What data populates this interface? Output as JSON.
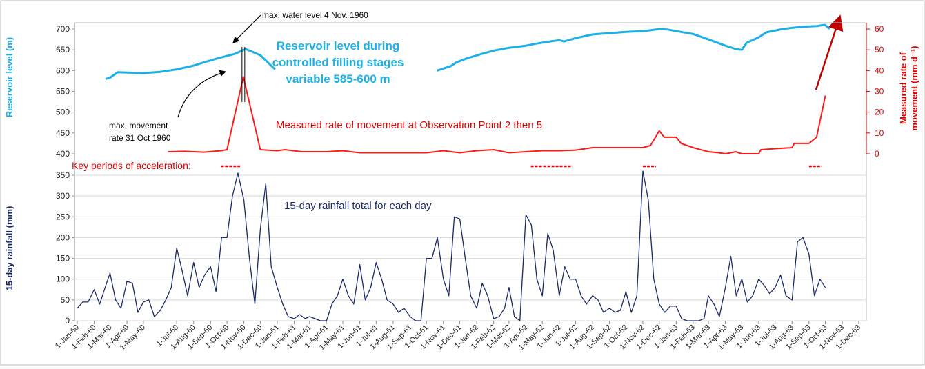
{
  "chart_data": [
    {
      "type": "line",
      "ylabel": "Reservoir level (m)",
      "y2label": [
        "Measured rate of",
        "movement (mm d⁻¹)"
      ],
      "ylim": [
        400,
        715
      ],
      "yticks": [
        400,
        450,
        500,
        550,
        600,
        650,
        700
      ],
      "y2lim": [
        0,
        63
      ],
      "y2ticks": [
        0,
        10,
        20,
        30,
        40,
        50,
        60
      ],
      "annotations": {
        "water_peak": "max. water level 4 Nov. 1960",
        "movement_peak": [
          "max. movement",
          "rate 31 Oct 1960"
        ],
        "reservoir_note": [
          "Reservoir level during",
          "controlled filling stages",
          "variable 585-600  m"
        ],
        "movement_note": "Measured rate of movement at Observation Point 2 then 5",
        "key_label": "Key periods of acceleration:"
      },
      "key_periods": [
        {
          "start": "1960-09-20",
          "end": "1960-10-25"
        },
        {
          "start": "1962-04-10",
          "end": "1962-06-25"
        },
        {
          "start": "1962-11-01",
          "end": "1962-11-25"
        },
        {
          "start": "1963-09-01",
          "end": "1963-09-25"
        }
      ],
      "key_color": "#e00000",
      "series": [
        {
          "name": "Reservoir level",
          "color": "#1cb0e8",
          "x": [
            "1960-02-22",
            "1960-03-01",
            "1960-03-15",
            "1960-05-01",
            "1960-06-01",
            "1960-07-01",
            "1960-08-01",
            "1960-08-20",
            "1960-09-15",
            "1960-10-15",
            "1960-11-04",
            "1960-12-01",
            "1960-12-28",
            "1961-06-01",
            "1961-10-20",
            "1961-11-15",
            "1961-11-25",
            "1961-12-15",
            "1962-01-10",
            "1962-02-01",
            "1962-03-01",
            "1962-04-01",
            "1962-04-20",
            "1962-05-15",
            "1962-06-01",
            "1962-06-10",
            "1962-07-01",
            "1962-08-01",
            "1962-09-01",
            "1962-10-01",
            "1962-11-01",
            "1962-11-15",
            "1962-12-01",
            "1962-12-15",
            "1963-01-10",
            "1963-02-01",
            "1963-03-01",
            "1963-04-01",
            "1963-04-20",
            "1963-05-01",
            "1963-05-10",
            "1963-06-01",
            "1963-06-15",
            "1963-07-15",
            "1963-08-15",
            "1963-09-15",
            "1963-09-30",
            "1963-10-09"
          ],
          "values": [
            580,
            583,
            596,
            594,
            597,
            603,
            612,
            620,
            630,
            640,
            652,
            637,
            603,
            null,
            600,
            611,
            620,
            630,
            640,
            648,
            655,
            660,
            665,
            670,
            673,
            670,
            678,
            687,
            690,
            693,
            695,
            697,
            700,
            699,
            693,
            688,
            675,
            660,
            652,
            650,
            667,
            680,
            692,
            700,
            705,
            707,
            710,
            700
          ]
        },
        {
          "name": "Measured rate of movement",
          "color": "#ff1a1a",
          "axis": "y2",
          "x": [
            "1960-06-15",
            "1960-07-15",
            "1960-08-20",
            "1960-09-20",
            "1960-10-01",
            "1960-10-31",
            "1960-12-01",
            "1961-01-01",
            "1961-01-15",
            "1961-02-15",
            "1961-03-01",
            "1961-04-01",
            "1961-05-01",
            "1961-06-01",
            "1961-07-01",
            "1961-08-01",
            "1961-09-01",
            "1961-10-01",
            "1961-11-01",
            "1961-12-01",
            "1962-01-01",
            "1962-02-01",
            "1962-03-01",
            "1962-04-01",
            "1962-05-01",
            "1962-06-01",
            "1962-07-01",
            "1962-08-01",
            "1962-09-01",
            "1962-10-01",
            "1962-11-01",
            "1962-11-15",
            "1962-12-01",
            "1962-12-10",
            "1963-01-01",
            "1963-01-10",
            "1963-02-01",
            "1963-03-01",
            "1963-03-20",
            "1963-04-01",
            "1963-04-20",
            "1963-05-01",
            "1963-06-01",
            "1963-06-05",
            "1963-07-01",
            "1963-08-01",
            "1963-08-05",
            "1963-09-01",
            "1963-09-15",
            "1963-10-01"
          ],
          "values": [
            1,
            1.2,
            0.8,
            1.5,
            2,
            37,
            2,
            1.5,
            2,
            1,
            1,
            1,
            1.5,
            0.5,
            0.5,
            0.5,
            0.5,
            0.5,
            1.5,
            0.5,
            1.5,
            2,
            0.5,
            1,
            1.5,
            1.5,
            1.8,
            3,
            3,
            3,
            3,
            4,
            11,
            8,
            8,
            5,
            3,
            1,
            0.5,
            0,
            1,
            0,
            0,
            2,
            2.5,
            3,
            5,
            5,
            8,
            28
          ]
        }
      ]
    },
    {
      "type": "line",
      "ylabel": "15-day rainfall (mm)",
      "annotation": "15-day rainfall total for each day",
      "ylim": [
        0,
        350
      ],
      "yticks": [
        0,
        50,
        100,
        150,
        200,
        250,
        300,
        350
      ],
      "grid": true,
      "xlim": [
        "1960-01-01",
        "1963-12-15"
      ],
      "xticks": [
        {
          "value": "1960-01-01",
          "label": "1-Jan-60"
        },
        {
          "value": "1960-02-01",
          "label": "1-Feb-60"
        },
        {
          "value": "1960-03-01",
          "label": "1-Mar-60"
        },
        {
          "value": "1960-04-01",
          "label": "1-Apr-60"
        },
        {
          "value": "1960-05-01",
          "label": "1-May-60"
        },
        {
          "value": "1960-07-01",
          "label": "1-Jul-60"
        },
        {
          "value": "1960-08-01",
          "label": "1-Aug-60"
        },
        {
          "value": "1960-09-01",
          "label": "1-Sep-60"
        },
        {
          "value": "1960-10-01",
          "label": "1-Oct-60"
        },
        {
          "value": "1960-11-01",
          "label": "1-Nov-60"
        },
        {
          "value": "1960-12-01",
          "label": "1-Dec-60"
        },
        {
          "value": "1961-01-01",
          "label": "1-Jan-61"
        },
        {
          "value": "1961-02-01",
          "label": "1-Feb-61"
        },
        {
          "value": "1961-03-01",
          "label": "1-Mar-61"
        },
        {
          "value": "1961-04-01",
          "label": "1-Apr-61"
        },
        {
          "value": "1961-05-01",
          "label": "1-May-61"
        },
        {
          "value": "1961-06-01",
          "label": "1-Jun-61"
        },
        {
          "value": "1961-07-01",
          "label": "1-Jul-61"
        },
        {
          "value": "1961-08-01",
          "label": "1-Aug-61"
        },
        {
          "value": "1961-09-01",
          "label": "1-Sep-61"
        },
        {
          "value": "1961-10-01",
          "label": "1-Oct-61"
        },
        {
          "value": "1961-11-01",
          "label": "1-Nov-61"
        },
        {
          "value": "1961-12-01",
          "label": "1-Dec-61"
        },
        {
          "value": "1962-01-01",
          "label": "1-Jan-62"
        },
        {
          "value": "1962-02-01",
          "label": "1-Feb-62"
        },
        {
          "value": "1962-03-01",
          "label": "1-Mar-62"
        },
        {
          "value": "1962-04-01",
          "label": "1-Apr-62"
        },
        {
          "value": "1962-05-01",
          "label": "1-May-62"
        },
        {
          "value": "1962-06-01",
          "label": "1-Jun-62"
        },
        {
          "value": "1962-07-01",
          "label": "1-Jul-62"
        },
        {
          "value": "1962-08-01",
          "label": "1-Aug-62"
        },
        {
          "value": "1962-09-01",
          "label": "1-Sep-62"
        },
        {
          "value": "1962-10-01",
          "label": "1-Oct-62"
        },
        {
          "value": "1962-11-01",
          "label": "1-Nov-62"
        },
        {
          "value": "1962-12-01",
          "label": "1-Dec-62"
        },
        {
          "value": "1963-01-01",
          "label": "1-Jan-63"
        },
        {
          "value": "1963-02-01",
          "label": "1-Feb-63"
        },
        {
          "value": "1963-03-01",
          "label": "1-Mar-63"
        },
        {
          "value": "1963-04-01",
          "label": "1-Apr-63"
        },
        {
          "value": "1963-05-01",
          "label": "1-May-63"
        },
        {
          "value": "1963-06-01",
          "label": "1-Jun-63"
        },
        {
          "value": "1963-07-01",
          "label": "1-Jul-63"
        },
        {
          "value": "1963-08-01",
          "label": "1-Aug-63"
        },
        {
          "value": "1963-09-01",
          "label": "1-Sep-63"
        },
        {
          "value": "1963-10-01",
          "label": "1-Oct-63"
        },
        {
          "value": "1963-11-01",
          "label": "1-Nov-63"
        },
        {
          "value": "1963-12-01",
          "label": "1-Dec-63"
        }
      ],
      "series": [
        {
          "name": "15-day rainfall",
          "color": "#1b2a6b",
          "x": [
            "1960-01-01",
            "1960-01-11",
            "1960-01-21",
            "1960-02-01",
            "1960-02-11",
            "1960-02-21",
            "1960-03-01",
            "1960-03-11",
            "1960-03-21",
            "1960-04-01",
            "1960-04-11",
            "1960-04-21",
            "1960-05-01",
            "1960-05-11",
            "1960-05-21",
            "1960-06-01",
            "1960-06-11",
            "1960-06-21",
            "1960-07-01",
            "1960-07-11",
            "1960-07-21",
            "1960-08-01",
            "1960-08-11",
            "1960-08-21",
            "1960-09-01",
            "1960-09-11",
            "1960-09-21",
            "1960-10-01",
            "1960-10-11",
            "1960-10-21",
            "1960-11-01",
            "1960-11-11",
            "1960-11-21",
            "1960-12-01",
            "1960-12-11",
            "1960-12-21",
            "1961-01-01",
            "1961-01-11",
            "1961-01-21",
            "1961-02-01",
            "1961-02-11",
            "1961-02-21",
            "1961-03-01",
            "1961-03-11",
            "1961-03-21",
            "1961-04-01",
            "1961-04-11",
            "1961-04-21",
            "1961-05-01",
            "1961-05-11",
            "1961-05-21",
            "1961-06-01",
            "1961-06-11",
            "1961-06-21",
            "1961-07-01",
            "1961-07-11",
            "1961-07-21",
            "1961-08-01",
            "1961-08-11",
            "1961-08-21",
            "1961-09-01",
            "1961-09-11",
            "1961-09-21",
            "1961-10-01",
            "1961-10-11",
            "1961-10-21",
            "1961-11-01",
            "1961-11-11",
            "1961-11-21",
            "1961-12-01",
            "1961-12-11",
            "1961-12-21",
            "1962-01-01",
            "1962-01-11",
            "1962-01-21",
            "1962-02-01",
            "1962-02-11",
            "1962-02-21",
            "1962-03-01",
            "1962-03-11",
            "1962-03-21",
            "1962-04-01",
            "1962-04-11",
            "1962-04-21",
            "1962-05-01",
            "1962-05-11",
            "1962-05-21",
            "1962-06-01",
            "1962-06-11",
            "1962-06-21",
            "1962-07-01",
            "1962-07-11",
            "1962-07-21",
            "1962-08-01",
            "1962-08-11",
            "1962-08-21",
            "1962-09-01",
            "1962-09-11",
            "1962-09-21",
            "1962-10-01",
            "1962-10-11",
            "1962-10-21",
            "1962-11-01",
            "1962-11-11",
            "1962-11-21",
            "1962-12-01",
            "1962-12-11",
            "1962-12-21",
            "1963-01-01",
            "1963-01-11",
            "1963-01-21",
            "1963-02-01",
            "1963-02-11",
            "1963-02-21",
            "1963-03-01",
            "1963-03-11",
            "1963-03-21",
            "1963-04-01",
            "1963-04-11",
            "1963-04-21",
            "1963-05-01",
            "1963-05-11",
            "1963-05-21",
            "1963-06-01",
            "1963-06-11",
            "1963-06-21",
            "1963-07-01",
            "1963-07-11",
            "1963-07-21",
            "1963-08-01",
            "1963-08-11",
            "1963-08-21",
            "1963-09-01",
            "1963-09-11",
            "1963-09-21",
            "1963-10-01"
          ],
          "values": [
            30,
            45,
            45,
            75,
            40,
            80,
            115,
            50,
            30,
            95,
            90,
            20,
            45,
            50,
            10,
            25,
            50,
            80,
            175,
            120,
            60,
            140,
            80,
            110,
            130,
            70,
            200,
            200,
            300,
            355,
            290,
            150,
            40,
            220,
            330,
            130,
            80,
            40,
            10,
            5,
            15,
            5,
            10,
            5,
            0,
            0,
            40,
            60,
            100,
            60,
            40,
            135,
            50,
            80,
            140,
            100,
            50,
            40,
            20,
            30,
            10,
            0,
            0,
            150,
            150,
            200,
            100,
            60,
            250,
            245,
            150,
            60,
            30,
            90,
            60,
            5,
            10,
            30,
            80,
            10,
            0,
            255,
            230,
            100,
            60,
            210,
            170,
            60,
            130,
            100,
            100,
            60,
            40,
            60,
            50,
            20,
            30,
            20,
            25,
            70,
            20,
            60,
            360,
            290,
            100,
            40,
            20,
            35,
            35,
            5,
            0,
            0,
            0,
            5,
            60,
            40,
            10,
            80,
            155,
            60,
            100,
            45,
            60,
            100,
            85,
            65,
            80,
            110,
            60,
            50,
            190,
            200,
            160,
            60,
            100,
            80
          ]
        }
      ]
    }
  ]
}
